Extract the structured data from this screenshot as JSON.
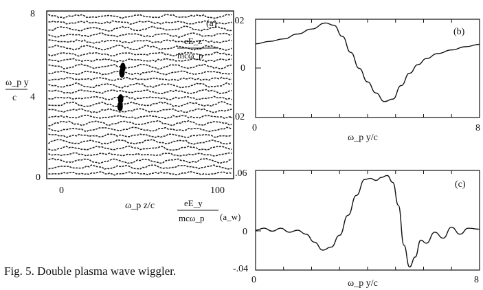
{
  "caption": "Fig. 5. Double plasma wave wiggler.",
  "chart_data": [
    {
      "id": "a",
      "panel_label": "(a)",
      "type": "scatter",
      "title": "",
      "xlabel": "ω_p z/c",
      "ylabel_top": "ω_p y",
      "ylabel_bottom": "c",
      "xlim": [
        0,
        110
      ],
      "ylim": [
        0,
        8
      ],
      "xticks": [
        "0",
        "100"
      ],
      "yticks": [
        "0",
        "4",
        "8"
      ],
      "x_tick_values": [
        0,
        100
      ],
      "y_tick_values": [
        0,
        4,
        8
      ],
      "grid": false,
      "description_data": {
        "tracer_rows": [
          0.25,
          0.55,
          0.85,
          1.15,
          1.45,
          1.75,
          2.05,
          2.35,
          2.65,
          2.95,
          3.25,
          3.55,
          3.85,
          4.15,
          4.45,
          4.75,
          5.05,
          5.35,
          5.65,
          5.95,
          6.25,
          6.55,
          6.85,
          7.15,
          7.45,
          7.75
        ],
        "clump_points": [
          [
            44.8,
            5.3
          ],
          [
            44.3,
            5.05
          ],
          [
            43.5,
            3.8
          ],
          [
            43.2,
            3.45
          ]
        ]
      }
    },
    {
      "id": "b",
      "panel_label": "(b)",
      "type": "line",
      "title": "",
      "xlabel": "ω_p y/c",
      "ylabel_num": "eE_z",
      "ylabel_den": "mcω_p",
      "xlim": [
        0,
        8
      ],
      "ylim": [
        -0.02,
        0.02
      ],
      "xticks": [
        "0",
        "8"
      ],
      "yticks": [
        ".02",
        "0",
        "-.02"
      ],
      "x_tick_values": [
        0,
        8
      ],
      "y_tick_values": [
        0.02,
        0,
        -0.02
      ],
      "grid": false,
      "series": [
        {
          "x": [
            0,
            0.5,
            1.0,
            1.5,
            2.0,
            2.5,
            2.8,
            3.1,
            3.4,
            3.7,
            4.0,
            4.3,
            4.6,
            4.9,
            5.2,
            5.5,
            5.8,
            6.1,
            6.5,
            7.0,
            7.5,
            8.0
          ],
          "y": [
            0.01,
            0.011,
            0.012,
            0.014,
            0.016,
            0.0185,
            0.0175,
            0.013,
            0.0065,
            0.0,
            -0.0055,
            -0.01,
            -0.0135,
            -0.0125,
            -0.007,
            -0.002,
            0.0015,
            0.004,
            0.006,
            0.0075,
            0.0088,
            0.0098
          ]
        }
      ]
    },
    {
      "id": "c",
      "panel_label": "(c)",
      "type": "line",
      "title": "",
      "xlabel": "ω_p y/c",
      "ylabel_num": "eE_y",
      "ylabel_den": "mcω_p",
      "ylabel_unit": "(a_w)",
      "xlim": [
        0,
        8
      ],
      "ylim": [
        -0.04,
        0.06
      ],
      "xticks": [
        "0",
        "8"
      ],
      "yticks": [
        ".06",
        "0",
        "-.04"
      ],
      "x_tick_values": [
        0,
        8
      ],
      "y_tick_values": [
        0.06,
        0,
        -0.04
      ],
      "grid": false,
      "series": [
        {
          "x": [
            0,
            0.3,
            0.6,
            0.9,
            1.2,
            1.5,
            1.8,
            2.1,
            2.4,
            2.7,
            3.0,
            3.3,
            3.6,
            3.9,
            4.1,
            4.3,
            4.5,
            4.7,
            4.9,
            5.1,
            5.3,
            5.5,
            5.7,
            5.9,
            6.1,
            6.4,
            6.7,
            7.0,
            7.3,
            7.6,
            8.0
          ],
          "y": [
            0.0,
            0.002,
            -0.001,
            0.002,
            -0.002,
            0.0,
            -0.004,
            -0.012,
            -0.02,
            -0.017,
            -0.005,
            0.015,
            0.035,
            0.051,
            0.052,
            0.05,
            0.053,
            0.055,
            0.048,
            0.025,
            -0.015,
            -0.037,
            -0.027,
            -0.01,
            -0.013,
            -0.002,
            -0.008,
            0.003,
            -0.004,
            0.002,
            0.001
          ]
        }
      ]
    }
  ]
}
